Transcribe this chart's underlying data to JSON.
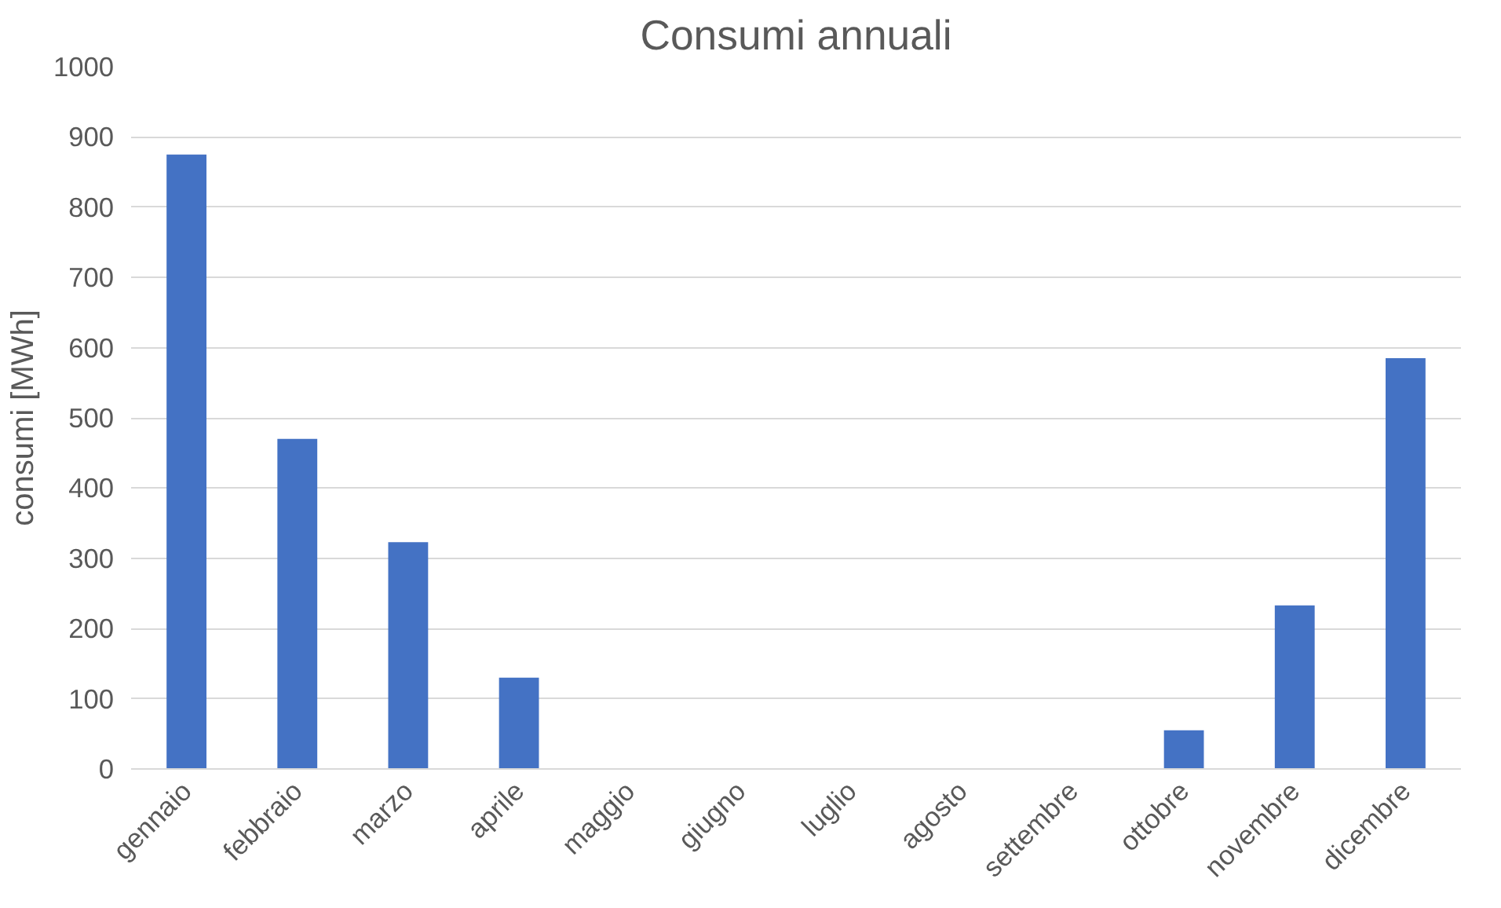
{
  "chart_data": {
    "type": "bar",
    "title": "Consumi annuali",
    "ylabel": "consumi [MWh]",
    "categories": [
      "gennaio",
      "febbraio",
      "marzo",
      "aprile",
      "maggio",
      "giugno",
      "luglio",
      "agosto",
      "settembre",
      "ottobre",
      "novembre",
      "dicembre"
    ],
    "values": [
      875,
      470,
      323,
      130,
      0,
      0,
      0,
      0,
      0,
      55,
      233,
      585
    ],
    "color": "#4472c4",
    "ylim": [
      0,
      1000
    ],
    "yticks": [
      0,
      100,
      200,
      300,
      400,
      500,
      600,
      700,
      800,
      900,
      1000
    ],
    "grid": "y"
  }
}
